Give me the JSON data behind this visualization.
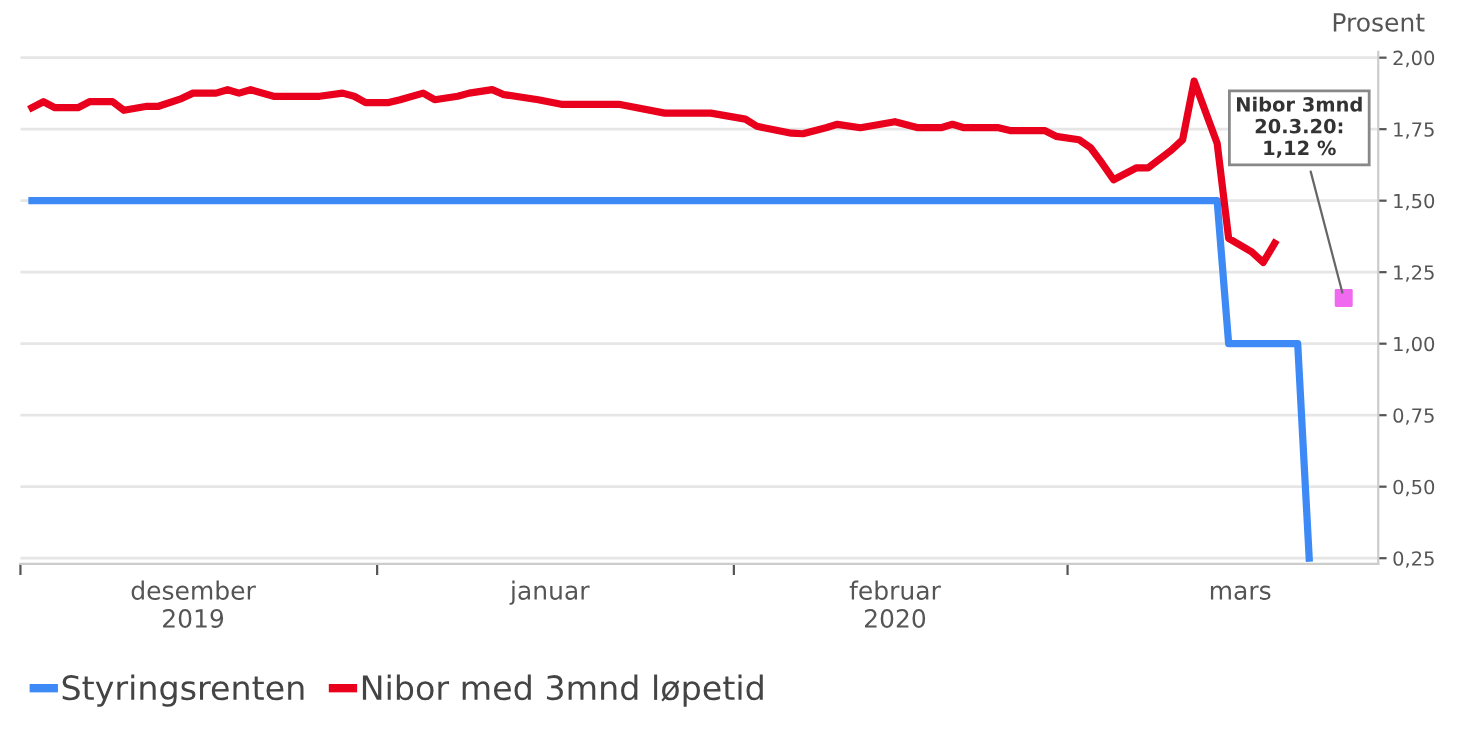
{
  "chart_data": {
    "type": "line",
    "ylabel": "Prosent",
    "xlim": [
      "2019-12-01",
      "2020-03-28"
    ],
    "xticks": [
      {
        "value": "2019-12-01",
        "label": null
      },
      {
        "value": "2020-01-01",
        "label": null
      },
      {
        "value": "2020-02-01",
        "label": null
      },
      {
        "value": "2020-03-01",
        "label": null
      },
      {
        "value": "2019-12-16",
        "label": "desember\n2019"
      },
      {
        "value": "2020-01-16",
        "label": "januar"
      },
      {
        "value": "2020-02-15",
        "label": "februar\n2020"
      },
      {
        "value": "2020-03-16",
        "label": "mars"
      }
    ],
    "ylim": [
      0.23,
      2.02
    ],
    "yticks": [
      {
        "value": 0.25,
        "label": "0,25"
      },
      {
        "value": 0.5,
        "label": "0,50"
      },
      {
        "value": 0.75,
        "label": "0,75"
      },
      {
        "value": 1.0,
        "label": "1,00"
      },
      {
        "value": 1.25,
        "label": "1,25"
      },
      {
        "value": 1.5,
        "label": "1,50"
      },
      {
        "value": 1.75,
        "label": "1,75"
      },
      {
        "value": 2.0,
        "label": "2,00"
      }
    ],
    "grid": "y",
    "legend": "bottom",
    "line_style": "solid",
    "series": [
      {
        "name": "Styringsrenten",
        "color": "#3d8af7",
        "x": [
          "2019-12-02",
          "2020-03-14",
          "2020-03-15",
          "2020-03-21",
          "2020-03-22"
        ],
        "values": [
          1.5,
          1.5,
          1.0,
          1.0,
          0.25
        ]
      },
      {
        "name": "Nibor med 3mnd løpetid",
        "color": "#e8001c",
        "x": [
          "2019-12-02",
          "2019-12-03",
          "2019-12-04",
          "2019-12-06",
          "2019-12-07",
          "2019-12-09",
          "2019-12-10",
          "2019-12-12",
          "2019-12-13",
          "2019-12-15",
          "2019-12-16",
          "2019-12-18",
          "2019-12-19",
          "2019-12-20",
          "2019-12-21",
          "2019-12-23",
          "2019-12-25",
          "2019-12-27",
          "2019-12-29",
          "2019-12-30",
          "2019-12-31",
          "2020-01-02",
          "2020-01-03",
          "2020-01-05",
          "2020-01-06",
          "2020-01-08",
          "2020-01-09",
          "2020-01-11",
          "2020-01-12",
          "2020-01-15",
          "2020-01-17",
          "2020-01-22",
          "2020-01-26",
          "2020-01-30",
          "2020-02-02",
          "2020-02-03",
          "2020-02-06",
          "2020-02-07",
          "2020-02-09",
          "2020-02-10",
          "2020-02-12",
          "2020-02-15",
          "2020-02-17",
          "2020-02-19",
          "2020-02-20",
          "2020-02-21",
          "2020-02-24",
          "2020-02-25",
          "2020-02-28",
          "2020-02-29",
          "2020-03-02",
          "2020-03-03",
          "2020-03-04",
          "2020-03-05",
          "2020-03-07",
          "2020-03-08",
          "2020-03-10",
          "2020-03-11",
          "2020-03-12",
          "2020-03-14",
          "2020-03-15",
          "2020-03-17",
          "2020-03-18",
          "2020-03-19"
        ],
        "values": [
          1.825,
          1.846,
          1.825,
          1.825,
          1.846,
          1.846,
          1.816,
          1.83,
          1.83,
          1.857,
          1.876,
          1.876,
          1.888,
          1.876,
          1.888,
          1.865,
          1.865,
          1.865,
          1.876,
          1.865,
          1.843,
          1.843,
          1.853,
          1.876,
          1.853,
          1.865,
          1.876,
          1.888,
          1.871,
          1.853,
          1.837,
          1.837,
          1.806,
          1.806,
          1.785,
          1.76,
          1.736,
          1.734,
          1.755,
          1.767,
          1.755,
          1.776,
          1.755,
          1.755,
          1.767,
          1.755,
          1.755,
          1.745,
          1.745,
          1.725,
          1.713,
          1.685,
          1.631,
          1.573,
          1.615,
          1.615,
          1.676,
          1.713,
          1.918,
          1.701,
          1.368,
          1.321,
          1.284,
          1.351
        ]
      },
      {
        "type": "scatter",
        "marker": "square",
        "color": "#f06af0",
        "x": [
          "2020-03-25"
        ],
        "values": [
          1.16
        ]
      }
    ],
    "annotations": [
      {
        "text": "Nibor 3mnd\n20.3.20:\n1,12 %",
        "x": "2020-03-25",
        "y": 1.16
      }
    ]
  }
}
